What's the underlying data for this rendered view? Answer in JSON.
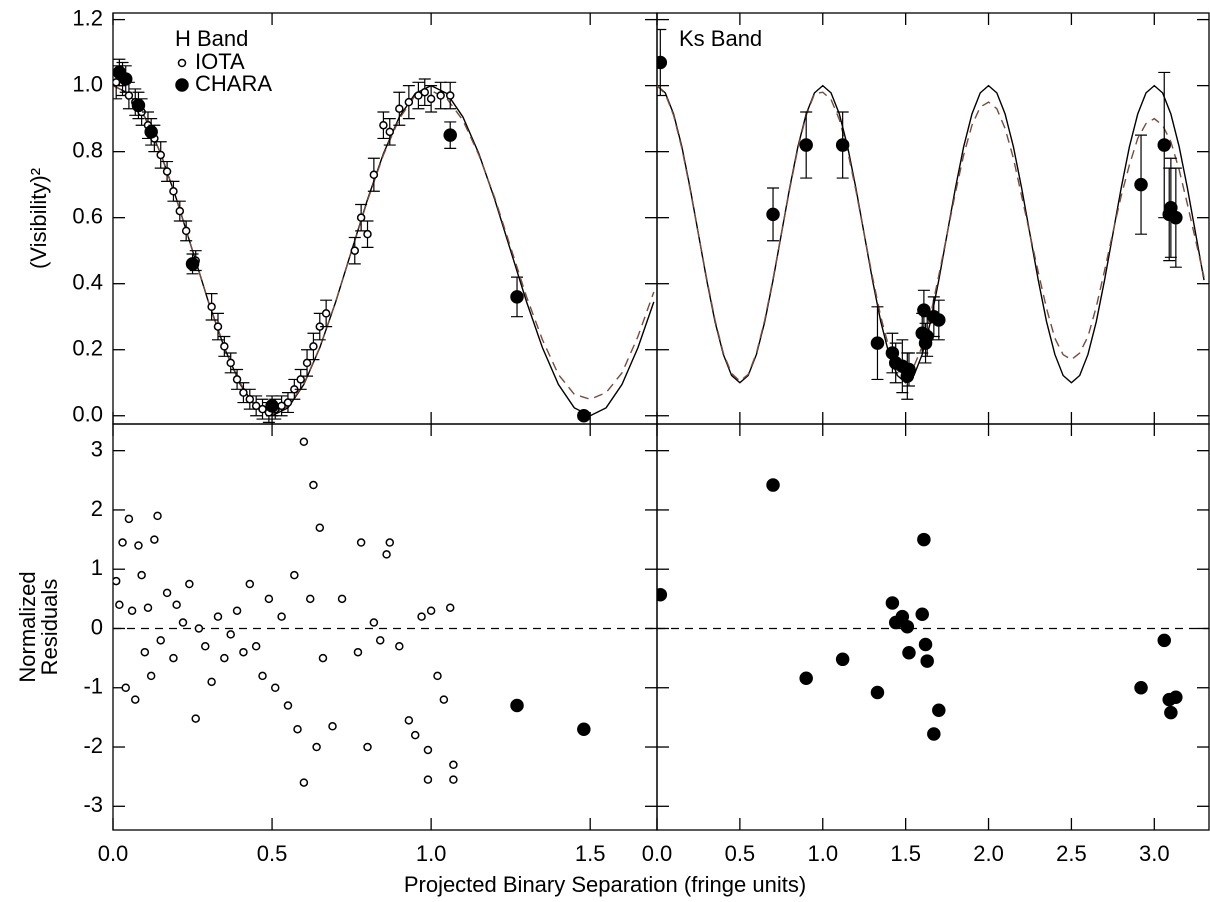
{
  "chart_data": [
    {
      "type": "scatter",
      "ylabel": "(Visibility)²",
      "annotation": "H Band",
      "legend": "upper left",
      "xlim": [
        0,
        1.71
      ],
      "ylim": [
        -0.025,
        1.22
      ],
      "xticks": [
        {
          "value": 0,
          "label": "0.0"
        },
        0.5,
        {
          "value": 1,
          "label": "1.0"
        },
        1.5
      ],
      "yticks": [
        {
          "value": 0,
          "label": "0.0"
        },
        0.2,
        0.4,
        0.6,
        0.8,
        {
          "value": 1,
          "label": "1.0"
        },
        1.2
      ],
      "series": [
        {
          "line": "solid",
          "color": "#000000",
          "x": [
            0,
            0.05,
            0.1,
            0.15,
            0.2,
            0.25,
            0.3,
            0.35,
            0.4,
            0.45,
            0.5,
            0.55,
            0.6,
            0.65,
            0.7,
            0.75,
            0.8,
            0.85,
            0.9,
            0.95,
            1,
            1.05,
            1.1,
            1.15,
            1.2,
            1.25,
            1.3,
            1.35,
            1.4,
            1.45,
            1.5,
            1.55,
            1.6,
            1.65,
            1.7
          ],
          "values": [
            1,
            0.976,
            0.905,
            0.794,
            0.655,
            0.5,
            0.345,
            0.206,
            0.095,
            0.024,
            0,
            0.024,
            0.095,
            0.206,
            0.345,
            0.5,
            0.655,
            0.794,
            0.905,
            0.976,
            1,
            0.976,
            0.905,
            0.794,
            0.655,
            0.5,
            0.345,
            0.206,
            0.095,
            0.024,
            0,
            0.024,
            0.095,
            0.206,
            0.345
          ]
        },
        {
          "line": "dashed",
          "color": "#7a4a3a",
          "x": [
            0,
            0.05,
            0.1,
            0.15,
            0.2,
            0.25,
            0.3,
            0.35,
            0.4,
            0.45,
            0.5,
            0.55,
            0.6,
            0.65,
            0.7,
            0.75,
            0.8,
            0.85,
            0.9,
            0.95,
            1,
            1.05,
            1.1,
            1.15,
            1.2,
            1.25,
            1.3,
            1.35,
            1.4,
            1.45,
            1.5,
            1.55,
            1.6,
            1.65,
            1.7
          ],
          "values": [
            1,
            0.976,
            0.905,
            0.794,
            0.655,
            0.5,
            0.346,
            0.208,
            0.098,
            0.028,
            0.005,
            0.028,
            0.097,
            0.207,
            0.345,
            0.5,
            0.652,
            0.79,
            0.9,
            0.97,
            0.985,
            0.96,
            0.895,
            0.79,
            0.66,
            0.51,
            0.36,
            0.23,
            0.125,
            0.065,
            0.05,
            0.07,
            0.13,
            0.24,
            0.375
          ]
        },
        {
          "name": "IOTA",
          "marker": "open",
          "color": "#000000",
          "x": [
            0.01,
            0.03,
            0.05,
            0.07,
            0.09,
            0.11,
            0.13,
            0.15,
            0.17,
            0.19,
            0.21,
            0.23,
            0.26,
            0.31,
            0.33,
            0.35,
            0.37,
            0.39,
            0.41,
            0.43,
            0.45,
            0.47,
            0.49,
            0.51,
            0.53,
            0.55,
            0.57,
            0.59,
            0.61,
            0.63,
            0.65,
            0.67,
            0.76,
            0.78,
            0.8,
            0.82,
            0.85,
            0.87,
            0.9,
            0.93,
            0.96,
            0.98,
            1,
            1.03,
            1.06
          ],
          "values": [
            1.01,
            1.02,
            0.97,
            0.95,
            0.92,
            0.88,
            0.84,
            0.79,
            0.74,
            0.68,
            0.62,
            0.56,
            0.47,
            0.33,
            0.27,
            0.21,
            0.16,
            0.11,
            0.07,
            0.05,
            0.03,
            0.02,
            0.01,
            0.02,
            0.03,
            0.04,
            0.08,
            0.11,
            0.16,
            0.21,
            0.27,
            0.31,
            0.5,
            0.6,
            0.55,
            0.73,
            0.88,
            0.86,
            0.93,
            0.95,
            0.97,
            0.98,
            0.96,
            0.97,
            0.97
          ],
          "errors": [
            0.05,
            0.05,
            0.04,
            0.04,
            0.04,
            0.04,
            0.04,
            0.04,
            0.03,
            0.03,
            0.03,
            0.03,
            0.03,
            0.04,
            0.04,
            0.03,
            0.03,
            0.03,
            0.03,
            0.03,
            0.03,
            0.03,
            0.03,
            0.03,
            0.03,
            0.03,
            0.03,
            0.03,
            0.04,
            0.04,
            0.04,
            0.04,
            0.04,
            0.04,
            0.04,
            0.05,
            0.04,
            0.04,
            0.05,
            0.05,
            0.04,
            0.04,
            0.04,
            0.04,
            0.04
          ]
        },
        {
          "name": "CHARA",
          "marker": "filled",
          "color": "#000000",
          "x": [
            0.02,
            0.04,
            0.08,
            0.12,
            0.25,
            0.5,
            1.06,
            1.27,
            1.48
          ],
          "values": [
            1.04,
            1.02,
            0.94,
            0.86,
            0.46,
            0.03,
            0.85,
            0.36,
            0.0
          ],
          "errors": [
            0.04,
            0.04,
            0.04,
            0.04,
            0.03,
            0.03,
            0.04,
            0.06,
            0.01
          ]
        }
      ]
    },
    {
      "type": "scatter",
      "annotation": "Ks Band",
      "xlim": [
        0,
        3.33
      ],
      "ylim": [
        -0.025,
        1.22
      ],
      "xticks": [
        {
          "value": 0,
          "label": "0.0"
        },
        0.5,
        {
          "value": 1,
          "label": "1.0"
        },
        1.5,
        {
          "value": 2,
          "label": "2.0"
        },
        2.5,
        {
          "value": 3,
          "label": "3.0"
        }
      ],
      "yticks": [
        {
          "value": 0,
          "label": "0.0"
        },
        0.2,
        0.4,
        0.6,
        0.8,
        {
          "value": 1,
          "label": "1.0"
        },
        1.2
      ],
      "series": [
        {
          "line": "solid",
          "color": "#000000",
          "x": [
            0,
            0.05,
            0.1,
            0.15,
            0.2,
            0.25,
            0.3,
            0.35,
            0.4,
            0.45,
            0.5,
            0.55,
            0.6,
            0.65,
            0.7,
            0.75,
            0.8,
            0.85,
            0.9,
            0.95,
            1,
            1.05,
            1.1,
            1.15,
            1.2,
            1.25,
            1.3,
            1.35,
            1.4,
            1.45,
            1.5,
            1.55,
            1.6,
            1.65,
            1.7,
            1.75,
            1.8,
            1.85,
            1.9,
            1.95,
            2,
            2.05,
            2.1,
            2.15,
            2.2,
            2.25,
            2.3,
            2.35,
            2.4,
            2.45,
            2.5,
            2.55,
            2.6,
            2.65,
            2.7,
            2.75,
            2.8,
            2.85,
            2.9,
            2.95,
            3,
            3.05,
            3.1,
            3.15,
            3.2,
            3.25,
            3.3
          ],
          "values": [
            1,
            0.978,
            0.914,
            0.815,
            0.689,
            0.55,
            0.411,
            0.285,
            0.186,
            0.122,
            0.1,
            0.122,
            0.186,
            0.285,
            0.411,
            0.55,
            0.689,
            0.815,
            0.914,
            0.978,
            1,
            0.978,
            0.914,
            0.815,
            0.689,
            0.55,
            0.411,
            0.285,
            0.186,
            0.122,
            0.1,
            0.122,
            0.186,
            0.285,
            0.411,
            0.55,
            0.689,
            0.815,
            0.914,
            0.978,
            1,
            0.978,
            0.914,
            0.815,
            0.689,
            0.55,
            0.411,
            0.285,
            0.186,
            0.122,
            0.1,
            0.122,
            0.186,
            0.285,
            0.411,
            0.55,
            0.689,
            0.815,
            0.914,
            0.978,
            1,
            0.978,
            0.914,
            0.815,
            0.689,
            0.55,
            0.411
          ]
        },
        {
          "line": "dashed",
          "color": "#7a4a3a",
          "x": [
            0,
            0.05,
            0.1,
            0.15,
            0.2,
            0.25,
            0.3,
            0.35,
            0.4,
            0.45,
            0.5,
            0.55,
            0.6,
            0.65,
            0.7,
            0.75,
            0.8,
            0.85,
            0.9,
            0.95,
            1,
            1.05,
            1.1,
            1.15,
            1.2,
            1.25,
            1.3,
            1.35,
            1.4,
            1.45,
            1.5,
            1.55,
            1.6,
            1.65,
            1.7,
            1.75,
            1.8,
            1.85,
            1.9,
            1.95,
            2,
            2.05,
            2.1,
            2.15,
            2.2,
            2.25,
            2.3,
            2.35,
            2.4,
            2.45,
            2.5,
            2.55,
            2.6,
            2.65,
            2.7,
            2.75,
            2.8,
            2.85,
            2.9,
            2.95,
            3,
            3.05,
            3.1,
            3.15,
            3.2,
            3.25,
            3.3
          ],
          "values": [
            1,
            0.975,
            0.91,
            0.81,
            0.685,
            0.55,
            0.415,
            0.29,
            0.19,
            0.128,
            0.105,
            0.125,
            0.19,
            0.29,
            0.415,
            0.55,
            0.685,
            0.81,
            0.91,
            0.975,
            0.98,
            0.958,
            0.897,
            0.802,
            0.682,
            0.55,
            0.42,
            0.3,
            0.205,
            0.145,
            0.125,
            0.15,
            0.21,
            0.305,
            0.425,
            0.55,
            0.675,
            0.79,
            0.88,
            0.935,
            0.95,
            0.93,
            0.87,
            0.78,
            0.665,
            0.55,
            0.435,
            0.325,
            0.235,
            0.185,
            0.17,
            0.19,
            0.24,
            0.33,
            0.44,
            0.555,
            0.665,
            0.76,
            0.84,
            0.885,
            0.9,
            0.88,
            0.83,
            0.745,
            0.64,
            0.53,
            0.42
          ]
        },
        {
          "marker": "filled",
          "color": "#000000",
          "x": [
            0.02,
            0.7,
            0.9,
            1.12,
            1.33,
            1.42,
            1.44,
            1.48,
            1.51,
            1.52,
            1.6,
            1.61,
            1.62,
            1.63,
            1.67,
            1.7,
            2.92,
            3.06,
            3.09,
            3.1,
            3.13
          ],
          "values": [
            1.07,
            0.61,
            0.82,
            0.82,
            0.22,
            0.19,
            0.16,
            0.15,
            0.12,
            0.14,
            0.25,
            0.32,
            0.22,
            0.24,
            0.3,
            0.29,
            0.7,
            0.82,
            0.61,
            0.63,
            0.6
          ],
          "errors": [
            0.1,
            0.08,
            0.1,
            0.1,
            0.11,
            0.06,
            0.06,
            0.08,
            0.07,
            0.05,
            0.06,
            0.06,
            0.06,
            0.06,
            0.06,
            0.06,
            0.15,
            0.22,
            0.14,
            0.15,
            0.15
          ]
        }
      ]
    },
    {
      "type": "scatter",
      "ylabel": [
        "Normalized",
        "Residuals"
      ],
      "hline": 0,
      "xlim": [
        0,
        1.71
      ],
      "ylim": [
        -3.4,
        3.45
      ],
      "xticks": [
        {
          "value": 0,
          "label": "0.0"
        },
        0.5,
        {
          "value": 1,
          "label": "1.0"
        },
        1.5
      ],
      "yticks": [
        -3,
        -2,
        -1,
        0,
        1,
        2,
        3
      ],
      "series": [
        {
          "marker": "open",
          "color": "#000000",
          "x": [
            0.01,
            0.02,
            0.03,
            0.04,
            0.05,
            0.06,
            0.07,
            0.08,
            0.09,
            0.1,
            0.11,
            0.12,
            0.13,
            0.14,
            0.15,
            0.17,
            0.19,
            0.2,
            0.22,
            0.24,
            0.26,
            0.27,
            0.29,
            0.31,
            0.33,
            0.35,
            0.37,
            0.39,
            0.41,
            0.43,
            0.45,
            0.47,
            0.49,
            0.51,
            0.53,
            0.55,
            0.57,
            0.58,
            0.6,
            0.6,
            0.62,
            0.63,
            0.64,
            0.65,
            0.66,
            0.69,
            0.72,
            0.77,
            0.78,
            0.8,
            0.82,
            0.84,
            0.86,
            0.87,
            0.9,
            0.93,
            0.95,
            0.97,
            0.99,
            0.99,
            1,
            1.02,
            1.04,
            1.06,
            1.07,
            1.07
          ],
          "values": [
            0.8,
            0.4,
            1.45,
            -1.0,
            1.85,
            0.3,
            -1.2,
            1.4,
            0.9,
            -0.4,
            0.35,
            -0.8,
            1.5,
            1.9,
            -0.2,
            0.6,
            -0.5,
            0.4,
            0.1,
            0.75,
            -1.52,
            0.0,
            -0.3,
            -0.9,
            0.2,
            -0.5,
            -0.1,
            0.3,
            -0.4,
            0.75,
            -0.3,
            -0.8,
            0.5,
            -1.0,
            0.2,
            -1.3,
            0.9,
            -1.7,
            3.15,
            -2.6,
            0.5,
            2.42,
            -2.0,
            1.7,
            -0.5,
            -1.65,
            0.5,
            -0.4,
            1.45,
            -2.0,
            0.1,
            -0.2,
            1.25,
            1.45,
            -0.3,
            -1.55,
            -1.8,
            0.2,
            -2.05,
            -2.55,
            0.3,
            -0.8,
            -1.2,
            0.35,
            -2.3,
            -2.55
          ]
        },
        {
          "marker": "filled",
          "color": "#000000",
          "x": [
            1.27,
            1.48
          ],
          "values": [
            -1.3,
            -1.7
          ]
        }
      ]
    },
    {
      "type": "scatter",
      "xlabel": "Projected Binary Separation (fringe units)",
      "hline": 0,
      "xlim": [
        0,
        3.33
      ],
      "ylim": [
        -3.4,
        3.45
      ],
      "xticks": [
        {
          "value": 0,
          "label": "0.0"
        },
        0.5,
        {
          "value": 1,
          "label": "1.0"
        },
        1.5,
        {
          "value": 2,
          "label": "2.0"
        },
        2.5,
        {
          "value": 3,
          "label": "3.0"
        }
      ],
      "yticks": [
        -3,
        -2,
        -1,
        0,
        1,
        2,
        3
      ],
      "series": [
        {
          "marker": "filled",
          "color": "#000000",
          "x": [
            0.02,
            0.7,
            0.9,
            1.12,
            1.33,
            1.42,
            1.44,
            1.48,
            1.51,
            1.52,
            1.6,
            1.61,
            1.62,
            1.63,
            1.67,
            1.7,
            2.92,
            3.06,
            3.09,
            3.1,
            3.13
          ],
          "values": [
            0.57,
            2.42,
            -0.84,
            -0.52,
            -1.08,
            0.43,
            0.1,
            0.2,
            0.03,
            -0.41,
            0.24,
            1.5,
            -0.27,
            -0.55,
            -1.78,
            -1.38,
            -1.0,
            -0.2,
            -1.2,
            -1.42,
            -1.16
          ]
        }
      ]
    }
  ]
}
